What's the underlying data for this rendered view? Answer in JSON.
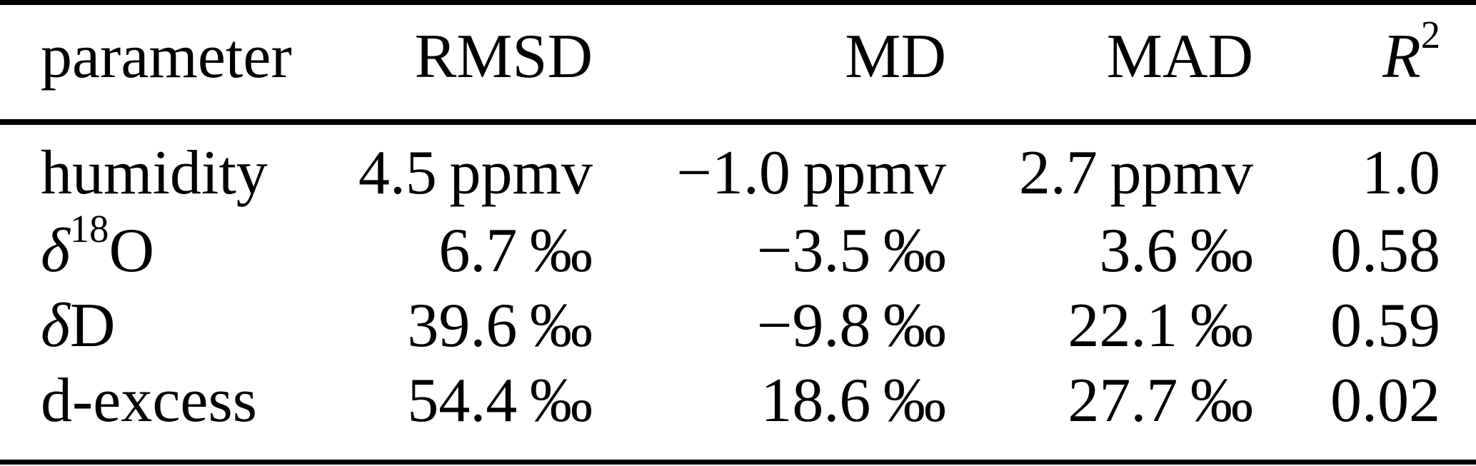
{
  "table": {
    "header": {
      "parameter": "parameter",
      "rmsd": "RMSD",
      "md": "MD",
      "mad": "MAD",
      "r2_base": "R",
      "r2_sup": "2"
    },
    "rows": [
      {
        "param_pre": "humidity",
        "rmsd": "4.5 ppmv",
        "md": "−1.0 ppmv",
        "mad": "2.7 ppmv",
        "r2": "1.0"
      },
      {
        "param_italic": "δ",
        "param_sup": "18",
        "param_post": "O",
        "rmsd": "6.7 ‰",
        "md": "−3.5 ‰",
        "mad": "3.6 ‰",
        "r2": "0.58"
      },
      {
        "param_italic": "δ",
        "param_post": "D",
        "rmsd": "39.6 ‰",
        "md": "−9.8 ‰",
        "mad": "22.1 ‰",
        "r2": "0.59"
      },
      {
        "param_pre": "d-excess",
        "rmsd": "54.4 ‰",
        "md": "18.6 ‰",
        "mad": "27.7 ‰",
        "r2": "0.02"
      }
    ]
  },
  "chart_data": {
    "type": "table",
    "columns": [
      "parameter",
      "RMSD",
      "MD",
      "MAD",
      "R2"
    ],
    "rows": [
      [
        "humidity",
        "4.5 ppmv",
        "-1.0 ppmv",
        "2.7 ppmv",
        "1.0"
      ],
      [
        "delta18O",
        "6.7 permil",
        "-3.5 permil",
        "3.6 permil",
        "0.58"
      ],
      [
        "deltaD",
        "39.6 permil",
        "-9.8 permil",
        "22.1 permil",
        "0.59"
      ],
      [
        "d-excess",
        "54.4 permil",
        "18.6 permil",
        "27.7 permil",
        "0.02"
      ]
    ]
  },
  "colors": {
    "background": "#ffffff",
    "text": "#000000",
    "rule": "#000000"
  }
}
